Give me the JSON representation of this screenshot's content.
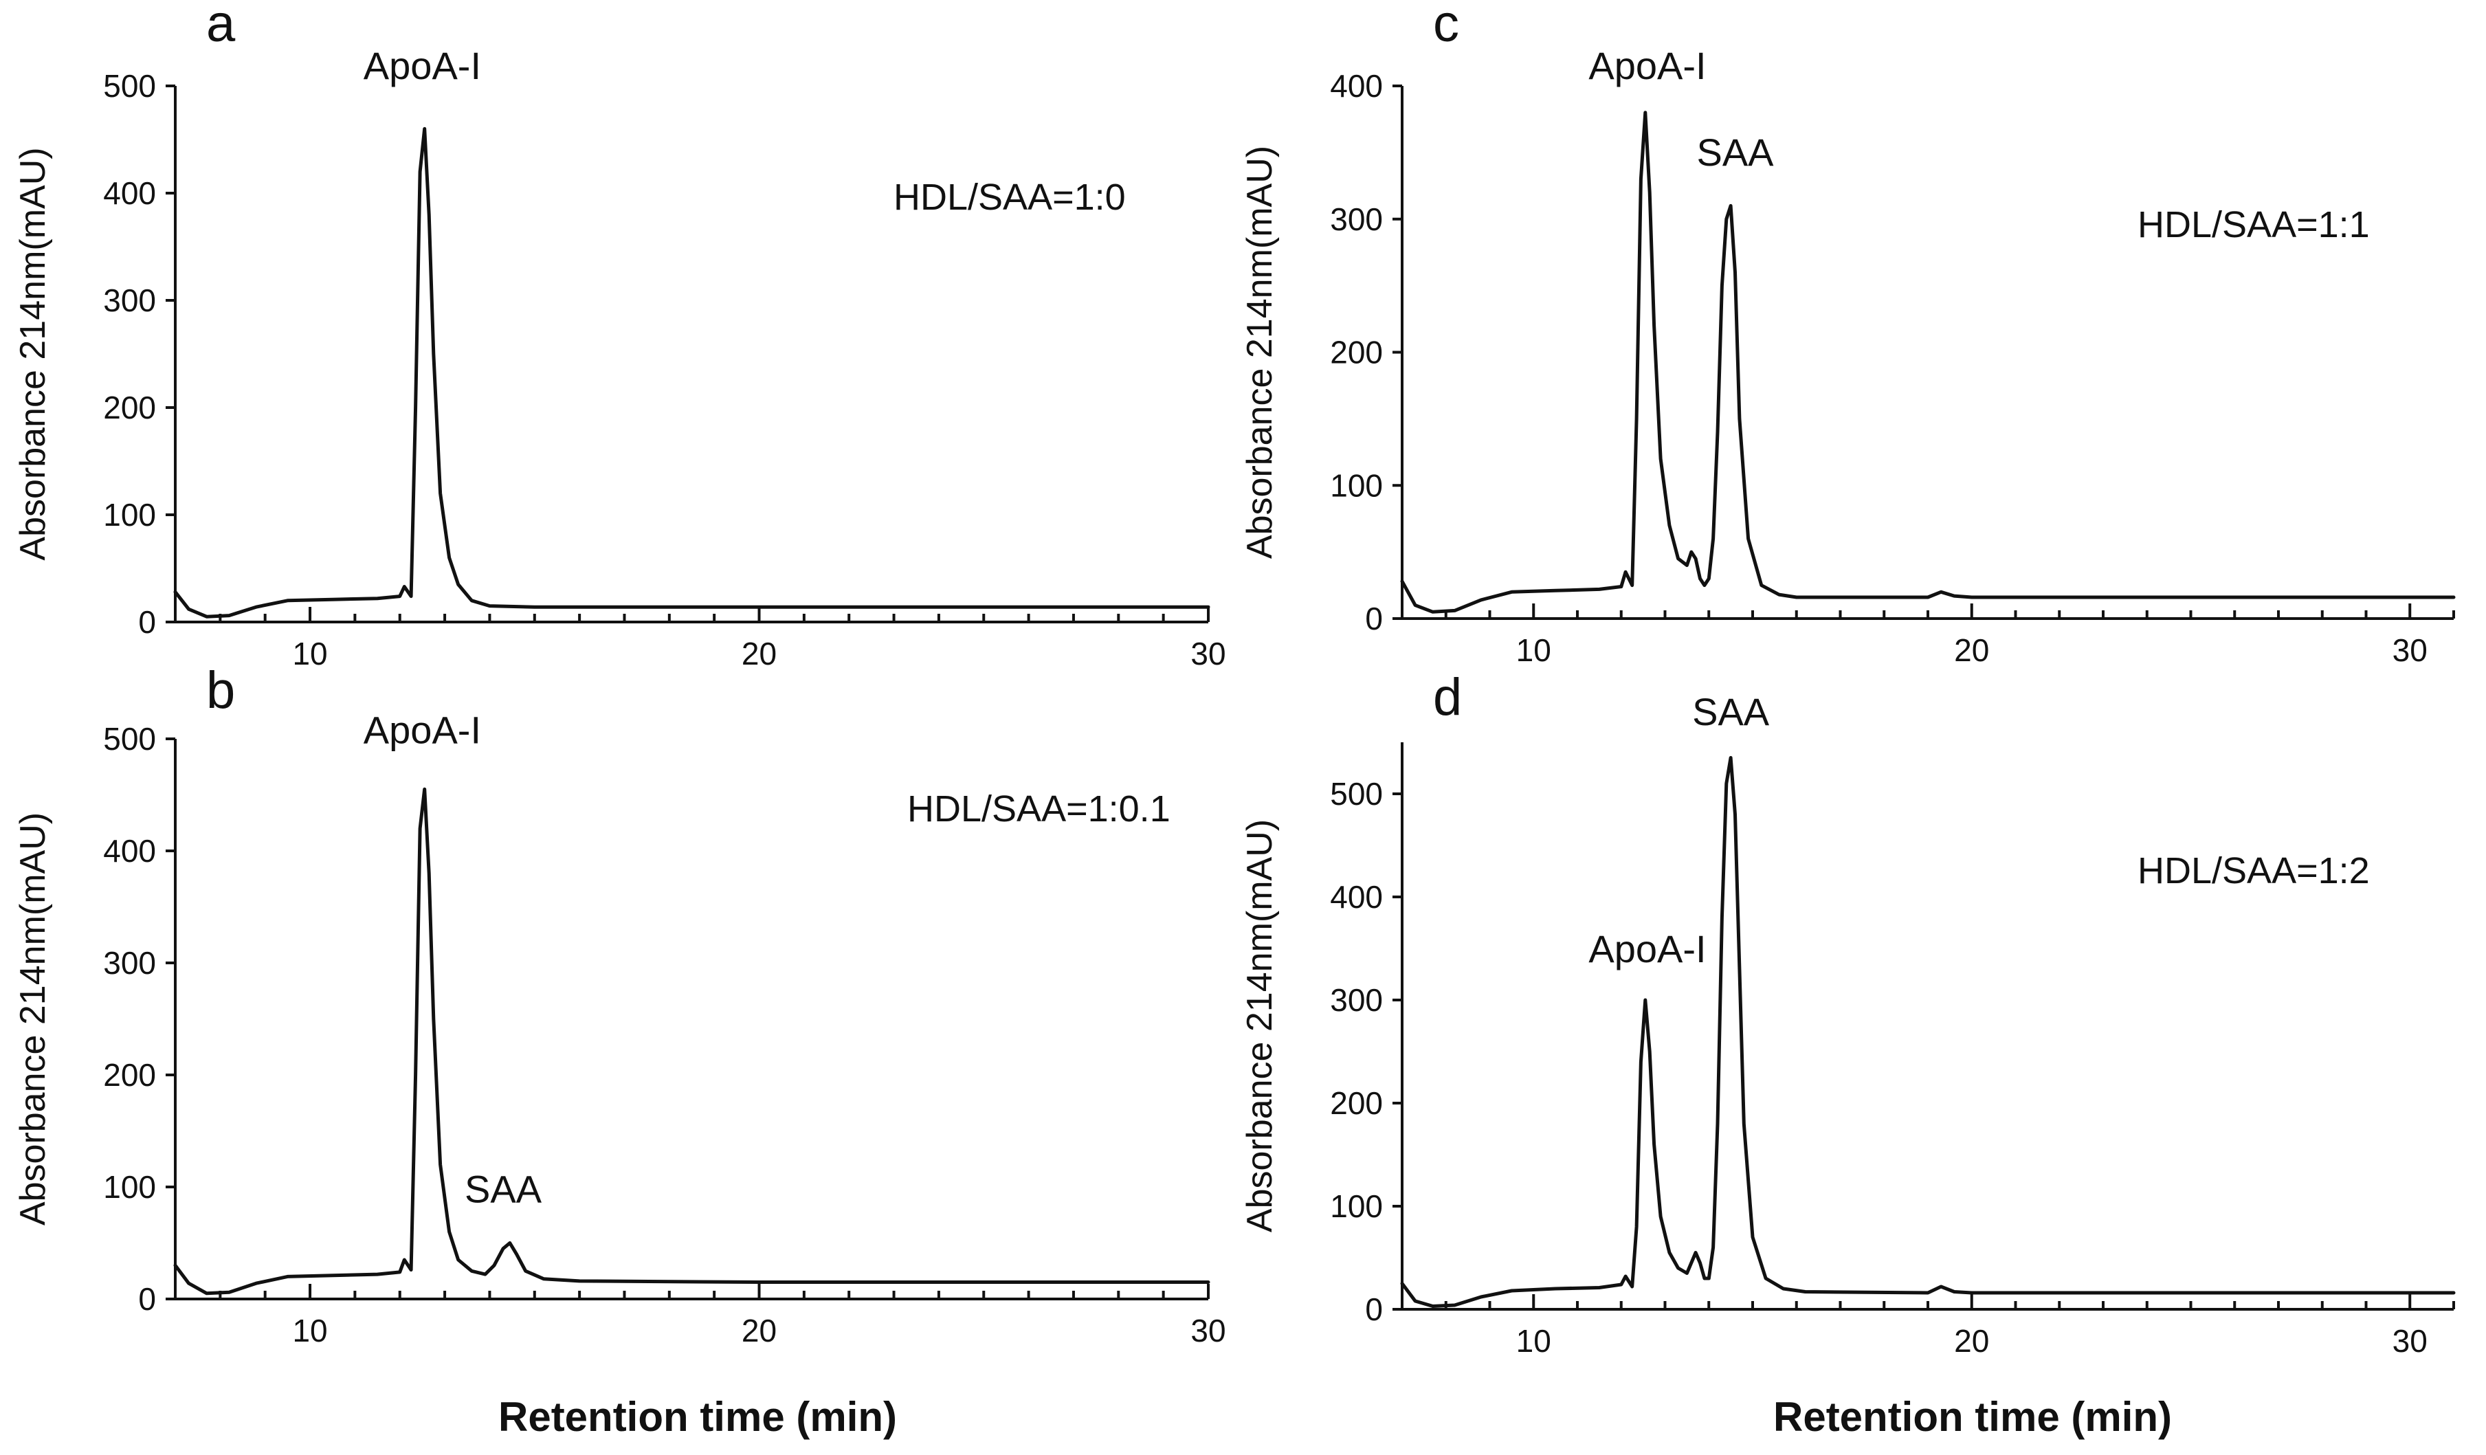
{
  "figure": {
    "xlabel": "Retention time (min)"
  },
  "chart_data": [
    {
      "panel": "a",
      "type": "line",
      "ylabel": "Absorbance 214nm(mAU)",
      "xlabel": "Retention time (min)",
      "xlim": [
        7,
        30
      ],
      "ylim": [
        0,
        500
      ],
      "xticks": [
        10,
        20,
        30
      ],
      "yticks": [
        0,
        100,
        200,
        300,
        400,
        500
      ],
      "ratio_label": "HDL/SAA=1:0",
      "annotations": [
        {
          "text": "ApoA-I",
          "x": 12.5,
          "y": 500
        }
      ],
      "series": [
        {
          "name": "trace",
          "x": [
            7,
            7.3,
            7.7,
            8.2,
            8.8,
            9.5,
            10.5,
            11.5,
            12.0,
            12.1,
            12.25,
            12.35,
            12.45,
            12.55,
            12.65,
            12.75,
            12.9,
            13.1,
            13.3,
            13.6,
            14.0,
            15,
            20,
            25,
            30
          ],
          "y": [
            28,
            12,
            5,
            6,
            14,
            20,
            21,
            22,
            24,
            33,
            24,
            200,
            420,
            460,
            380,
            250,
            120,
            60,
            35,
            20,
            15,
            14,
            14,
            14,
            14
          ]
        }
      ]
    },
    {
      "panel": "b",
      "type": "line",
      "ylabel": "Absorbance 214nm(mAU)",
      "xlabel": "Retention time (min)",
      "xlim": [
        7,
        30
      ],
      "ylim": [
        0,
        500
      ],
      "xticks": [
        10,
        20,
        30
      ],
      "yticks": [
        0,
        100,
        200,
        300,
        400,
        500
      ],
      "ratio_label": "HDL/SAA=1:0.1",
      "annotations": [
        {
          "text": "ApoA-I",
          "x": 12.5,
          "y": 490
        },
        {
          "text": "SAA",
          "x": 14.3,
          "y": 80
        }
      ],
      "series": [
        {
          "name": "trace",
          "x": [
            7,
            7.3,
            7.7,
            8.2,
            8.8,
            9.5,
            10.5,
            11.5,
            12.0,
            12.1,
            12.25,
            12.35,
            12.45,
            12.55,
            12.65,
            12.75,
            12.9,
            13.1,
            13.3,
            13.6,
            13.9,
            14.1,
            14.3,
            14.45,
            14.6,
            14.8,
            15.2,
            16,
            20,
            25,
            30
          ],
          "y": [
            30,
            14,
            5,
            6,
            14,
            20,
            21,
            22,
            24,
            35,
            26,
            200,
            420,
            455,
            380,
            250,
            120,
            60,
            35,
            25,
            22,
            30,
            45,
            50,
            40,
            25,
            18,
            16,
            15,
            15,
            15
          ]
        }
      ]
    },
    {
      "panel": "c",
      "type": "line",
      "ylabel": "Absorbance 214nm(mAU)",
      "xlabel": "Retention time (min)",
      "xlim": [
        7,
        31
      ],
      "ylim": [
        0,
        400
      ],
      "xticks": [
        10,
        20,
        30
      ],
      "yticks": [
        0,
        100,
        200,
        300,
        400
      ],
      "ratio_label": "HDL/SAA=1:1",
      "annotations": [
        {
          "text": "ApoA-I",
          "x": 12.6,
          "y": 400
        },
        {
          "text": "SAA",
          "x": 14.6,
          "y": 335
        }
      ],
      "series": [
        {
          "name": "trace",
          "x": [
            7,
            7.3,
            7.7,
            8.2,
            8.8,
            9.5,
            10.5,
            11.5,
            12.0,
            12.1,
            12.25,
            12.35,
            12.45,
            12.55,
            12.65,
            12.75,
            12.9,
            13.1,
            13.3,
            13.5,
            13.6,
            13.7,
            13.8,
            13.9,
            14.0,
            14.1,
            14.2,
            14.3,
            14.4,
            14.5,
            14.6,
            14.7,
            14.9,
            15.2,
            15.6,
            16,
            19,
            19.3,
            19.6,
            20,
            25,
            31
          ],
          "y": [
            28,
            10,
            5,
            6,
            14,
            20,
            21,
            22,
            24,
            35,
            25,
            150,
            330,
            380,
            320,
            220,
            120,
            70,
            45,
            40,
            50,
            45,
            30,
            25,
            30,
            60,
            140,
            250,
            300,
            310,
            260,
            150,
            60,
            25,
            18,
            16,
            16,
            20,
            17,
            16,
            16,
            16
          ]
        }
      ]
    },
    {
      "panel": "d",
      "type": "line",
      "ylabel": "Absorbance 214nm(mAU)",
      "xlabel": "Retention time (min)",
      "xlim": [
        7,
        31
      ],
      "ylim": [
        0,
        550
      ],
      "xticks": [
        10,
        20,
        30
      ],
      "yticks": [
        0,
        100,
        200,
        300,
        400,
        500
      ],
      "ratio_label": "HDL/SAA=1:2",
      "annotations": [
        {
          "text": "ApoA-I",
          "x": 12.6,
          "y": 330
        },
        {
          "text": "SAA",
          "x": 14.5,
          "y": 560
        }
      ],
      "series": [
        {
          "name": "trace",
          "x": [
            7,
            7.3,
            7.7,
            8.2,
            8.8,
            9.5,
            10.5,
            11.5,
            12.0,
            12.1,
            12.25,
            12.35,
            12.45,
            12.55,
            12.65,
            12.75,
            12.9,
            13.1,
            13.3,
            13.5,
            13.7,
            13.8,
            13.9,
            14.0,
            14.1,
            14.2,
            14.3,
            14.4,
            14.5,
            14.6,
            14.7,
            14.8,
            15.0,
            15.3,
            15.7,
            16.2,
            19,
            19.3,
            19.6,
            20,
            25,
            31
          ],
          "y": [
            25,
            8,
            3,
            4,
            12,
            18,
            20,
            21,
            24,
            32,
            22,
            80,
            240,
            300,
            250,
            160,
            90,
            55,
            40,
            35,
            55,
            45,
            30,
            30,
            60,
            180,
            380,
            510,
            535,
            480,
            330,
            180,
            70,
            30,
            20,
            17,
            16,
            22,
            17,
            16,
            16,
            16
          ]
        }
      ]
    }
  ]
}
